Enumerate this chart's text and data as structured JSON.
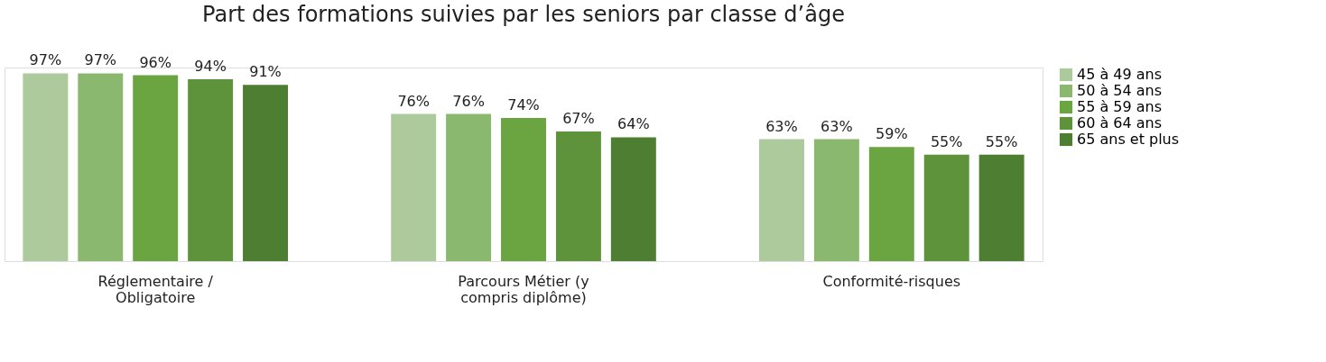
{
  "chart_data": {
    "type": "bar",
    "title": "Part des formations suivies par les seniors par classe d’âge",
    "categories": [
      "Réglementaire / Obligatoire",
      "Parcours Métier (y compris diplôme)",
      "Conformité-risques"
    ],
    "series": [
      {
        "name": "45 à 49 ans",
        "color": "#acca9c",
        "values": [
          97,
          76,
          63
        ],
        "value_labels": [
          "97%",
          "76%",
          "63%"
        ]
      },
      {
        "name": "50 à 54 ans",
        "color": "#8ab86f",
        "values": [
          97,
          76,
          63
        ],
        "value_labels": [
          "97%",
          "76%",
          "63%"
        ]
      },
      {
        "name": "55 à 59 ans",
        "color": "#6aa542",
        "values": [
          96,
          74,
          59
        ],
        "value_labels": [
          "96%",
          "74%",
          "59%"
        ]
      },
      {
        "name": "60 à 64 ans",
        "color": "#5e923b",
        "values": [
          94,
          67,
          55
        ],
        "value_labels": [
          "94%",
          "67%",
          "55%"
        ]
      },
      {
        "name": "65 ans et plus",
        "color": "#4e7e32",
        "values": [
          91,
          64,
          55
        ],
        "value_labels": [
          "91%",
          "64%",
          "55%"
        ]
      }
    ],
    "legend": "right",
    "grid": false
  }
}
